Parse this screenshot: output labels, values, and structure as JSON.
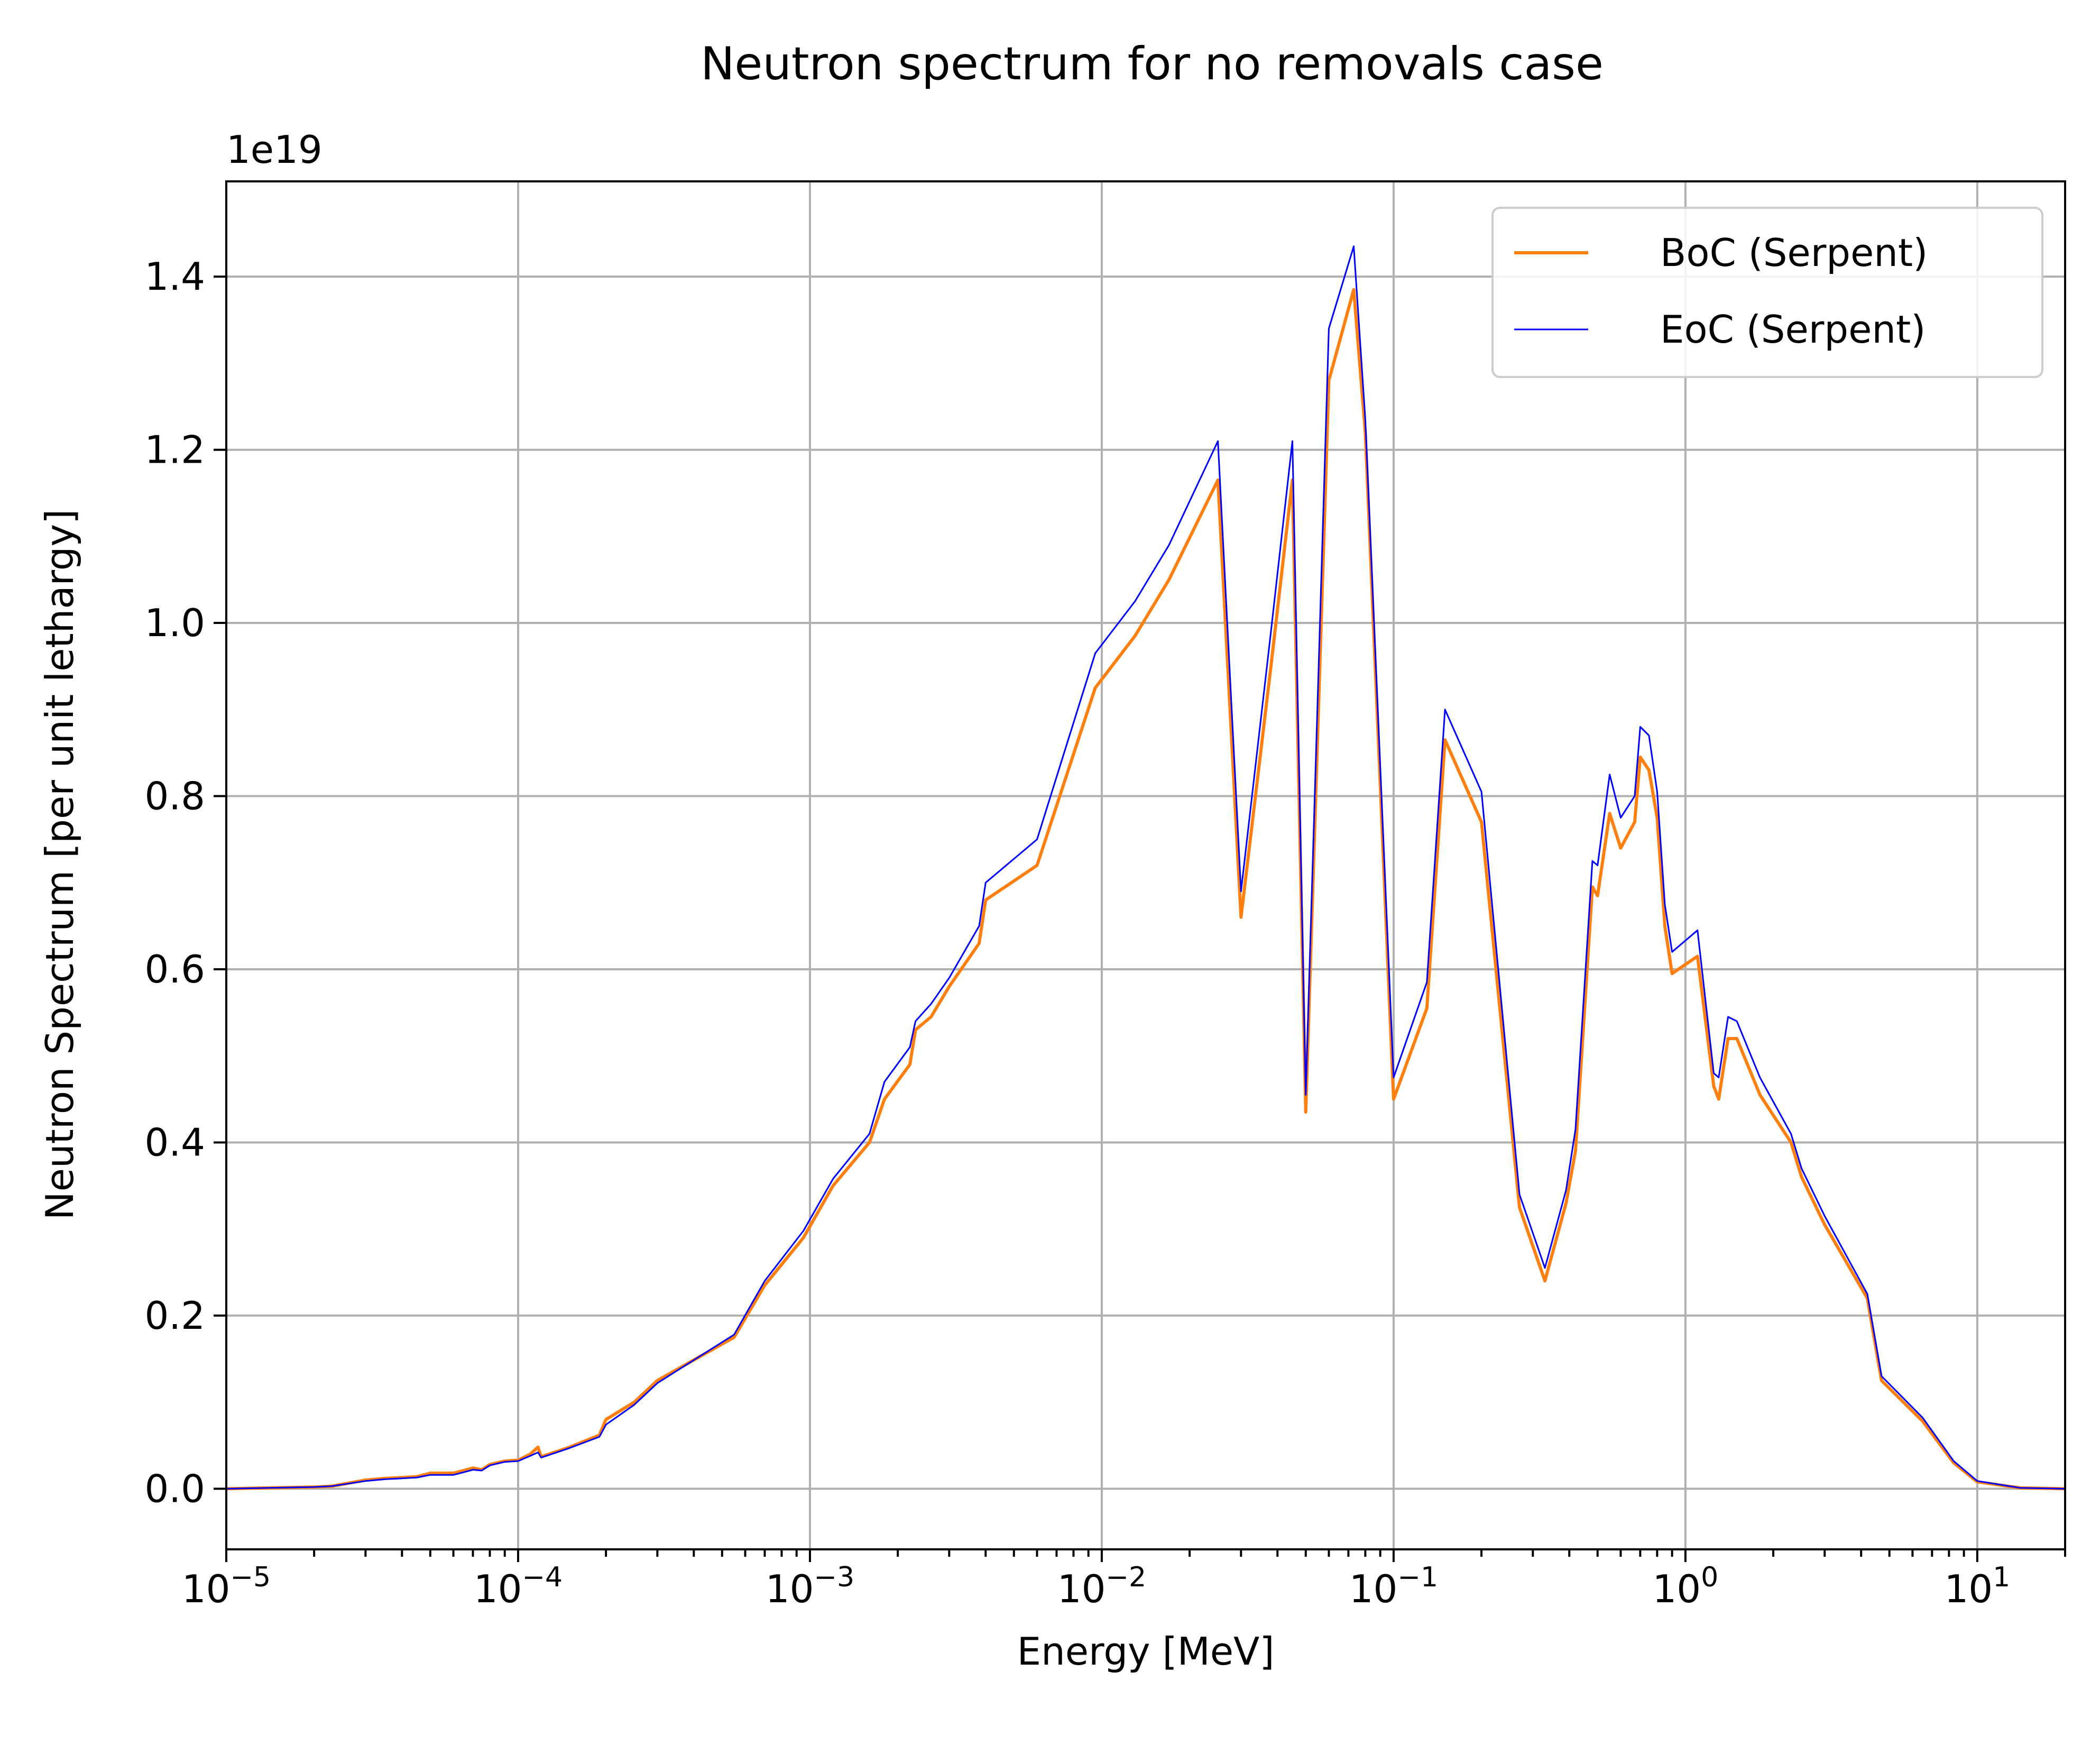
{
  "chart_data": {
    "type": "line",
    "title": "Neutron spectrum for no removals case",
    "xlabel": "Energy [MeV]",
    "ylabel": "Neutron Spectrum [per unit lethargy]",
    "y_offset_label": "1e19",
    "x_scale": "log",
    "xlim": [
      1e-05,
      20
    ],
    "ylim": [
      -0.07,
      1.51
    ],
    "grid": true,
    "legend_position": "top-right",
    "x_ticks": [
      {
        "value": 1e-05,
        "base": "10",
        "exp": "−5"
      },
      {
        "value": 0.0001,
        "base": "10",
        "exp": "−4"
      },
      {
        "value": 0.001,
        "base": "10",
        "exp": "−3"
      },
      {
        "value": 0.01,
        "base": "10",
        "exp": "−2"
      },
      {
        "value": 0.1,
        "base": "10",
        "exp": "−1"
      },
      {
        "value": 1,
        "base": "10",
        "exp": "0"
      },
      {
        "value": 10,
        "base": "10",
        "exp": "1"
      }
    ],
    "y_ticks": [
      {
        "value": 0.0,
        "label": "0.0"
      },
      {
        "value": 0.2,
        "label": "0.2"
      },
      {
        "value": 0.4,
        "label": "0.4"
      },
      {
        "value": 0.6,
        "label": "0.6"
      },
      {
        "value": 0.8,
        "label": "0.8"
      },
      {
        "value": 1.0,
        "label": "1.0"
      },
      {
        "value": 1.2,
        "label": "1.2"
      },
      {
        "value": 1.4,
        "label": "1.4"
      }
    ],
    "series": [
      {
        "name": "BoC (Serpent)",
        "color": "#ff7f0e",
        "x": [
          1e-05,
          2e-05,
          2.3e-05,
          3e-05,
          3.5e-05,
          4e-05,
          4.5e-05,
          5e-05,
          6e-05,
          6.5e-05,
          7e-05,
          7.5e-05,
          8e-05,
          9e-05,
          0.0001,
          0.00011,
          0.000117,
          0.00012,
          0.00015,
          0.00019,
          0.0002,
          0.00025,
          0.0003,
          0.00055,
          0.0007,
          0.00095,
          0.0012,
          0.0016,
          0.0018,
          0.0022,
          0.0023,
          0.0026,
          0.003,
          0.0038,
          0.004,
          0.006,
          0.0095,
          0.013,
          0.017,
          0.025,
          0.03,
          0.038,
          0.045,
          0.05,
          0.06,
          0.073,
          0.08,
          0.1,
          0.13,
          0.15,
          0.2,
          0.27,
          0.33,
          0.39,
          0.42,
          0.48,
          0.5,
          0.55,
          0.6,
          0.67,
          0.7,
          0.75,
          0.8,
          0.85,
          0.9,
          1.1,
          1.25,
          1.3,
          1.4,
          1.5,
          1.8,
          2.3,
          2.5,
          3,
          4.2,
          4.7,
          6.5,
          8.3,
          10,
          14,
          20
        ],
        "values": [
          0.0,
          0.002,
          0.003,
          0.01,
          0.012,
          0.013,
          0.014,
          0.018,
          0.018,
          0.021,
          0.024,
          0.022,
          0.028,
          0.032,
          0.033,
          0.04,
          0.048,
          0.037,
          0.048,
          0.062,
          0.08,
          0.1,
          0.125,
          0.175,
          0.235,
          0.29,
          0.35,
          0.4,
          0.45,
          0.49,
          0.53,
          0.545,
          0.58,
          0.63,
          0.68,
          0.72,
          0.925,
          0.985,
          1.05,
          1.165,
          0.66,
          0.95,
          1.165,
          0.435,
          1.28,
          1.385,
          1.22,
          0.45,
          0.555,
          0.865,
          0.77,
          0.325,
          0.24,
          0.33,
          0.39,
          0.695,
          0.685,
          0.78,
          0.74,
          0.77,
          0.845,
          0.83,
          0.775,
          0.65,
          0.595,
          0.615,
          0.465,
          0.45,
          0.52,
          0.52,
          0.455,
          0.4,
          0.36,
          0.305,
          0.22,
          0.125,
          0.078,
          0.03,
          0.008,
          0.001,
          0.0
        ]
      },
      {
        "name": "EoC (Serpent)",
        "color": "#0000ff",
        "x": [
          1e-05,
          2e-05,
          2.3e-05,
          3e-05,
          3.5e-05,
          4e-05,
          4.5e-05,
          5e-05,
          6e-05,
          6.5e-05,
          7e-05,
          7.5e-05,
          8e-05,
          9e-05,
          0.0001,
          0.00011,
          0.000117,
          0.00012,
          0.00015,
          0.00019,
          0.0002,
          0.00025,
          0.0003,
          0.00055,
          0.0007,
          0.00095,
          0.0012,
          0.0016,
          0.0018,
          0.0022,
          0.0023,
          0.0026,
          0.003,
          0.0038,
          0.004,
          0.006,
          0.0095,
          0.013,
          0.017,
          0.025,
          0.03,
          0.038,
          0.045,
          0.05,
          0.06,
          0.073,
          0.08,
          0.1,
          0.13,
          0.15,
          0.2,
          0.27,
          0.33,
          0.39,
          0.42,
          0.48,
          0.5,
          0.55,
          0.6,
          0.67,
          0.7,
          0.75,
          0.8,
          0.85,
          0.9,
          1.1,
          1.25,
          1.3,
          1.4,
          1.5,
          1.8,
          2.3,
          2.5,
          3,
          4.2,
          4.7,
          6.5,
          8.3,
          10,
          14,
          20
        ],
        "values": [
          0.0,
          0.002,
          0.003,
          0.009,
          0.011,
          0.012,
          0.013,
          0.016,
          0.016,
          0.019,
          0.022,
          0.021,
          0.027,
          0.031,
          0.032,
          0.038,
          0.042,
          0.036,
          0.047,
          0.06,
          0.074,
          0.097,
          0.122,
          0.178,
          0.24,
          0.298,
          0.358,
          0.41,
          0.47,
          0.51,
          0.54,
          0.56,
          0.59,
          0.65,
          0.7,
          0.75,
          0.965,
          1.025,
          1.09,
          1.21,
          0.69,
          0.99,
          1.21,
          0.455,
          1.34,
          1.435,
          1.235,
          0.475,
          0.585,
          0.9,
          0.805,
          0.34,
          0.255,
          0.345,
          0.415,
          0.725,
          0.72,
          0.825,
          0.775,
          0.8,
          0.88,
          0.87,
          0.805,
          0.675,
          0.62,
          0.645,
          0.48,
          0.475,
          0.545,
          0.54,
          0.475,
          0.41,
          0.37,
          0.315,
          0.225,
          0.13,
          0.082,
          0.032,
          0.009,
          0.001,
          0.0
        ]
      }
    ]
  }
}
